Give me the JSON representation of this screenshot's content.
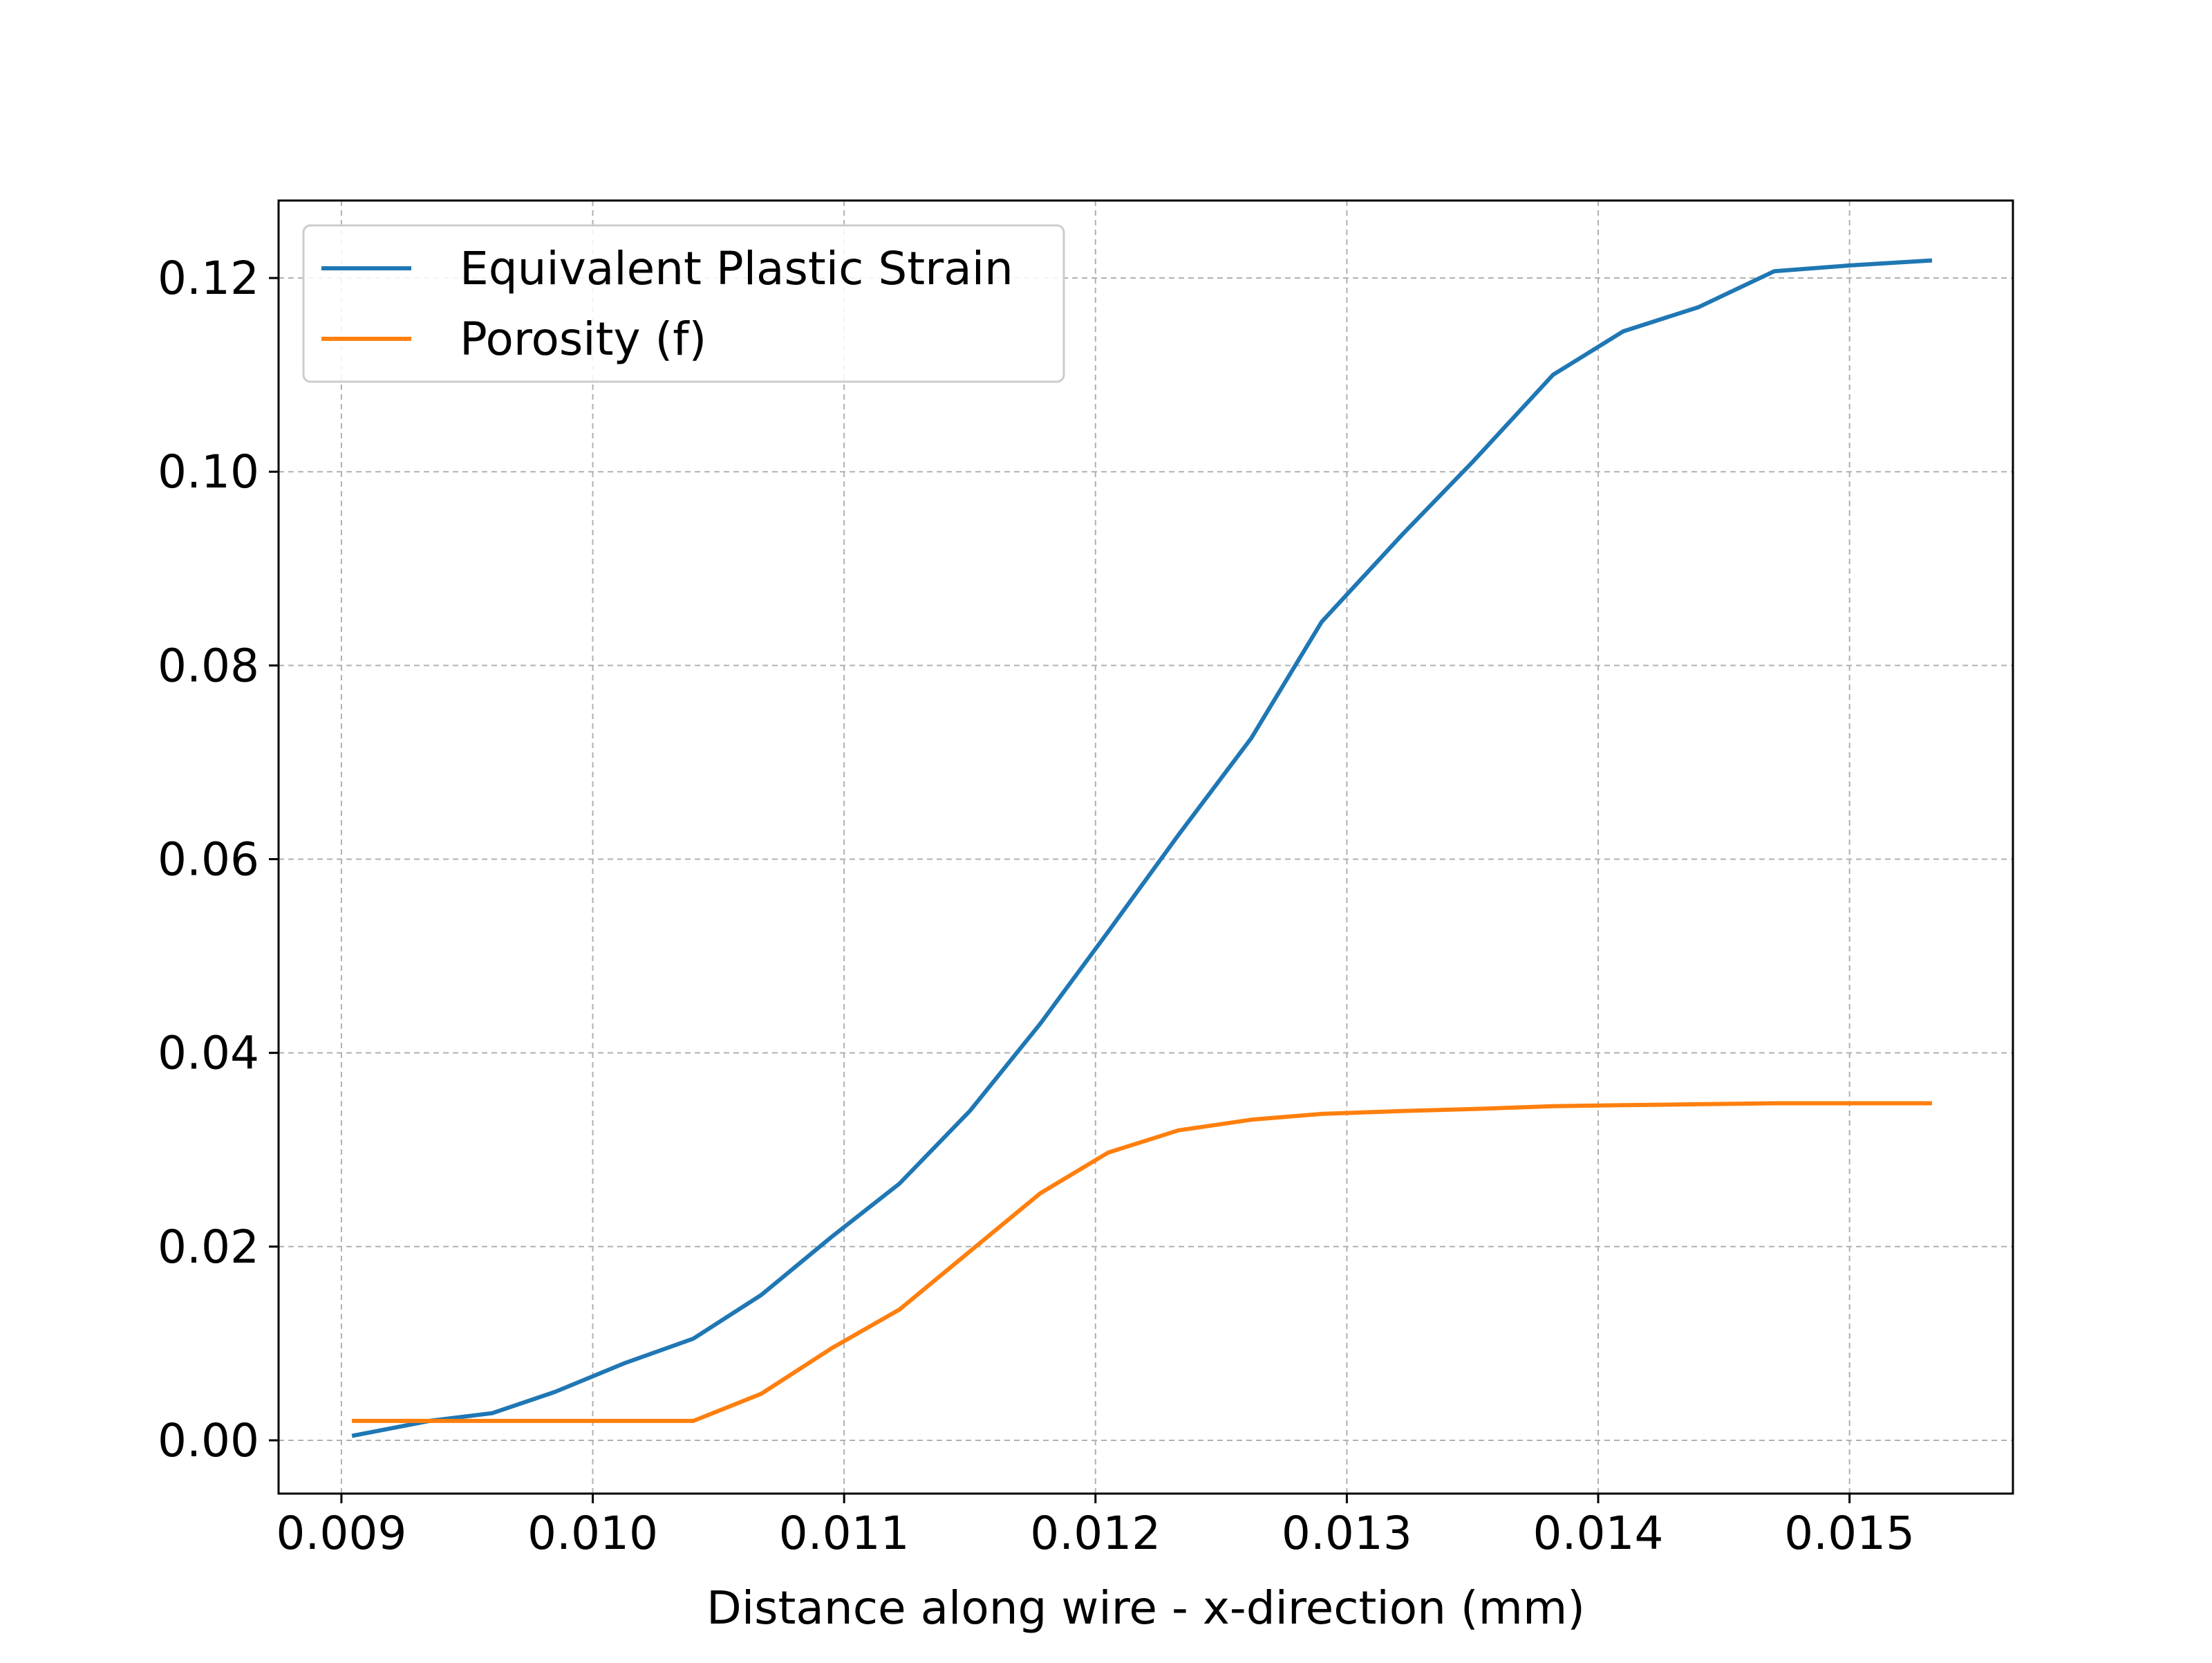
{
  "chart_data": {
    "type": "line",
    "title": "",
    "xlabel": "Distance along wire - x-direction (mm)",
    "ylabel": "",
    "xlim": [
      0.00875,
      0.01565
    ],
    "ylim": [
      -0.0055,
      0.128
    ],
    "x_ticks": [
      0.009,
      0.01,
      0.011,
      0.012,
      0.013,
      0.014,
      0.015
    ],
    "x_tick_labels": [
      "0.009",
      "0.010",
      "0.011",
      "0.012",
      "0.013",
      "0.014",
      "0.015"
    ],
    "y_ticks": [
      0.0,
      0.02,
      0.04,
      0.06,
      0.08,
      0.1,
      0.12
    ],
    "y_tick_labels": [
      "0.00",
      "0.02",
      "0.04",
      "0.06",
      "0.08",
      "0.10",
      "0.12"
    ],
    "grid": true,
    "legend_position": "upper-left",
    "series": [
      {
        "name": "Equivalent Plastic Strain",
        "color": "#1f77b4",
        "x": [
          0.00905,
          0.00935,
          0.0096,
          0.00985,
          0.01013,
          0.0104,
          0.01067,
          0.01095,
          0.01122,
          0.0115,
          0.01178,
          0.01205,
          0.01233,
          0.01262,
          0.0129,
          0.01322,
          0.0135,
          0.01382,
          0.0141,
          0.0144,
          0.0147,
          0.015,
          0.01532
        ],
        "y": [
          0.0005,
          0.002,
          0.0028,
          0.005,
          0.008,
          0.0105,
          0.015,
          0.021,
          0.0265,
          0.034,
          0.043,
          0.0525,
          0.0625,
          0.0725,
          0.0845,
          0.0935,
          0.101,
          0.11,
          0.1145,
          0.117,
          0.1207,
          0.1213,
          0.1218
        ]
      },
      {
        "name": "Porosity (f)",
        "color": "#ff7f0e",
        "x": [
          0.00905,
          0.00935,
          0.0096,
          0.00985,
          0.01013,
          0.0104,
          0.01067,
          0.01095,
          0.01122,
          0.0115,
          0.01178,
          0.01205,
          0.01233,
          0.01262,
          0.0129,
          0.01322,
          0.0135,
          0.01382,
          0.0141,
          0.0144,
          0.0147,
          0.015,
          0.01532
        ],
        "y": [
          0.002,
          0.002,
          0.002,
          0.002,
          0.002,
          0.002,
          0.0048,
          0.0095,
          0.0135,
          0.0195,
          0.0255,
          0.0297,
          0.032,
          0.0331,
          0.0337,
          0.034,
          0.0342,
          0.0345,
          0.0346,
          0.0347,
          0.0348,
          0.0348,
          0.0348
        ]
      }
    ]
  }
}
